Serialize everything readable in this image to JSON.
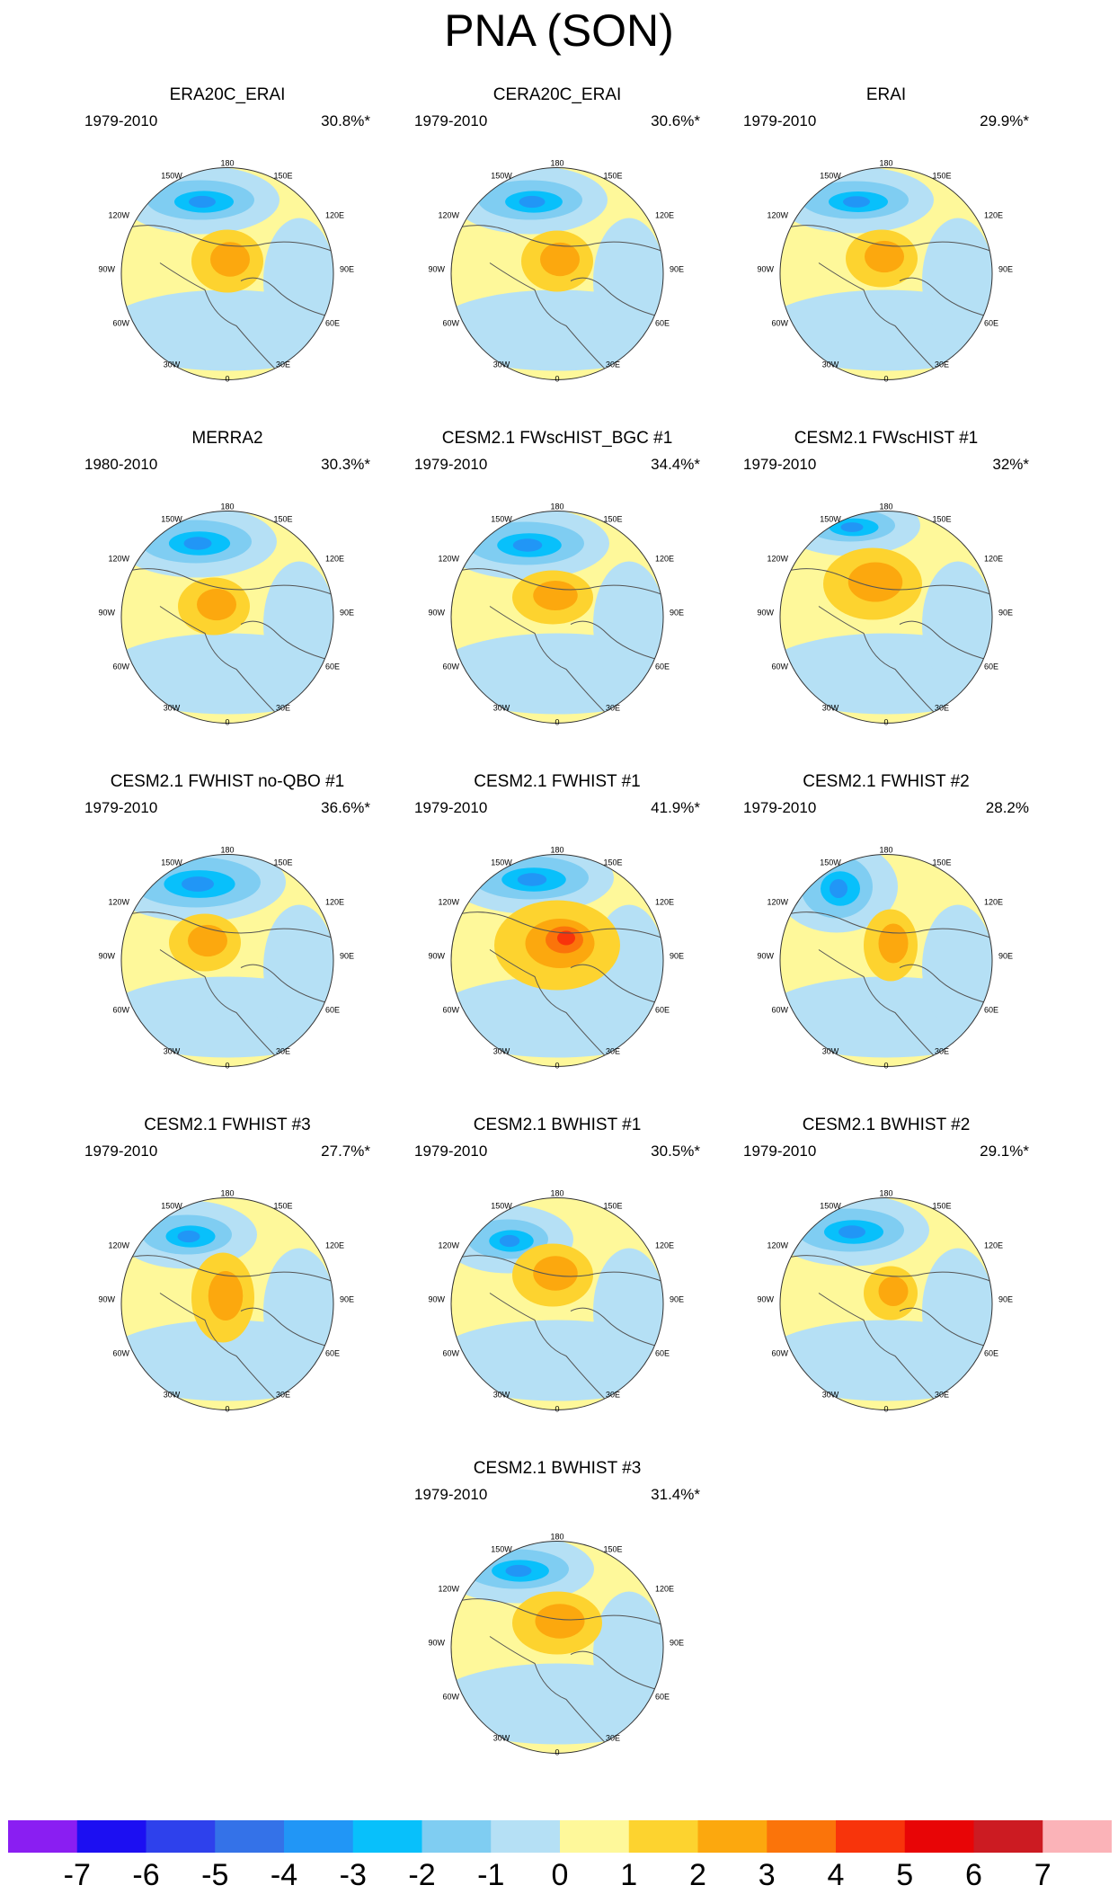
{
  "title": "PNA (SON)",
  "chart_data": {
    "type": "polar-stereographic contour maps",
    "title": "PNA (SON)",
    "panels": [
      {
        "name": "ERA20C_ERAI",
        "period": "1979-2010",
        "variance": "30.8%*"
      },
      {
        "name": "CERA20C_ERAI",
        "period": "1979-2010",
        "variance": "30.6%*"
      },
      {
        "name": "ERAI",
        "period": "1979-2010",
        "variance": "29.9%*"
      },
      {
        "name": "MERRA2",
        "period": "1980-2010",
        "variance": "30.3%*"
      },
      {
        "name": "CESM2.1 FWscHIST_BGC #1",
        "period": "1979-2010",
        "variance": "34.4%*"
      },
      {
        "name": "CESM2.1 FWscHIST #1",
        "period": "1979-2010",
        "variance": "32%*"
      },
      {
        "name": "CESM2.1 FWHIST no-QBO #1",
        "period": "1979-2010",
        "variance": "36.6%*"
      },
      {
        "name": "CESM2.1 FWHIST #1",
        "period": "1979-2010",
        "variance": "41.9%*"
      },
      {
        "name": "CESM2.1 FWHIST #2",
        "period": "1979-2010",
        "variance": "28.2%"
      },
      {
        "name": "CESM2.1 FWHIST #3",
        "period": "1979-2010",
        "variance": "27.7%*"
      },
      {
        "name": "CESM2.1 BWHIST #1",
        "period": "1979-2010",
        "variance": "30.5%*"
      },
      {
        "name": "CESM2.1 BWHIST #2",
        "period": "1979-2010",
        "variance": "29.1%*"
      },
      {
        "name": "CESM2.1 BWHIST #3",
        "period": "1979-2010",
        "variance": "31.4%*"
      }
    ],
    "longitude_labels": [
      "180",
      "150W",
      "150E",
      "120W",
      "120E",
      "90W",
      "90E",
      "60W",
      "60E",
      "30W",
      "30E",
      "0"
    ],
    "colorbar": {
      "labels": [
        "-7",
        "-6",
        "-5",
        "-4",
        "-3",
        "-2",
        "-1",
        "0",
        "1",
        "2",
        "3",
        "4",
        "5",
        "6",
        "7"
      ],
      "colors": [
        "#8a1ef2",
        "#1c0ff2",
        "#2e41ec",
        "#3472e8",
        "#2196f6",
        "#08c0fb",
        "#7fcdf2",
        "#b5e0f5",
        "#fef89a",
        "#fdd32f",
        "#fca80e",
        "#fb740a",
        "#f8340b",
        "#e80506",
        "#cc1b22",
        "#fbb3b8"
      ]
    }
  }
}
